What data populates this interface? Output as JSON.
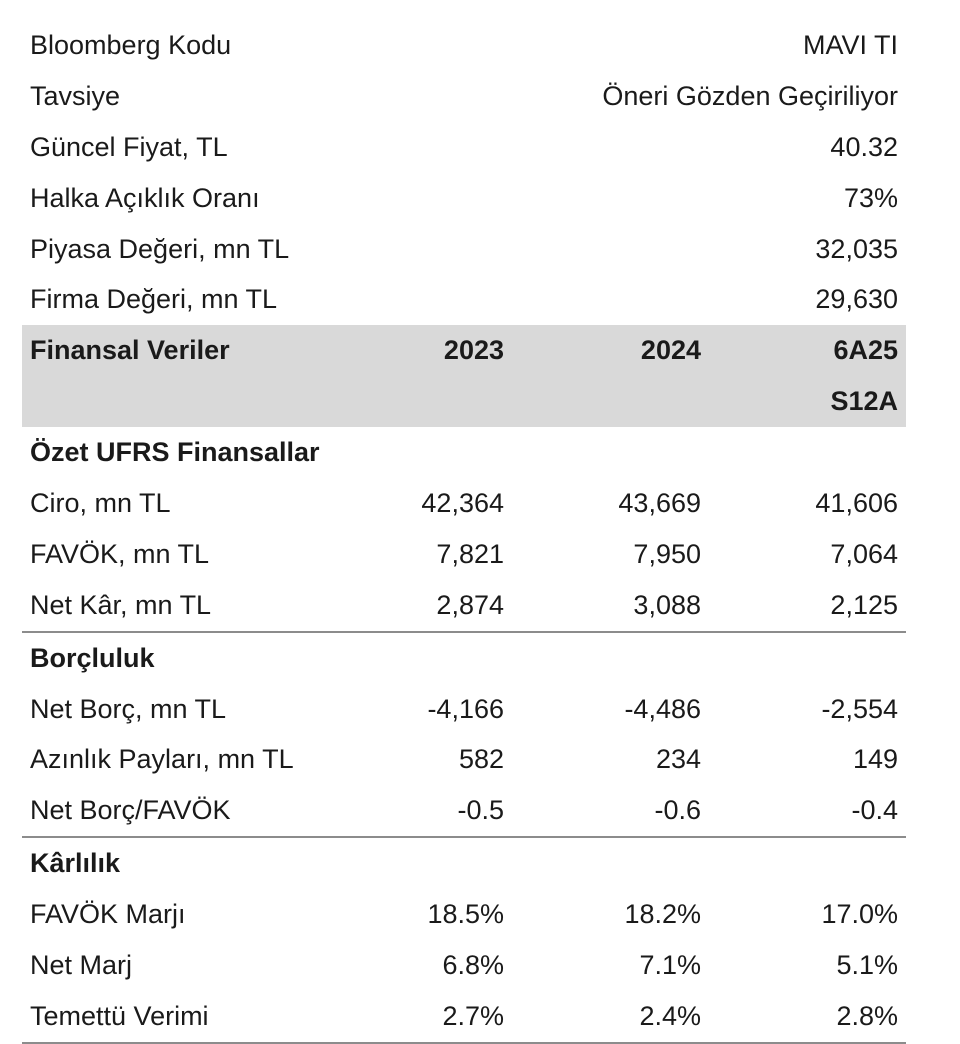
{
  "info": [
    {
      "label": "Bloomberg Kodu",
      "value": "MAVI TI"
    },
    {
      "label": "Tavsiye",
      "value": "Öneri Gözden Geçiriliyor"
    },
    {
      "label": "Güncel Fiyat, TL",
      "value": "40.32"
    },
    {
      "label": "Halka Açıklık Oranı",
      "value": "73%"
    },
    {
      "label": "Piyasa Değeri, mn TL",
      "value": "32,035"
    },
    {
      "label": "Firma Değeri, mn TL",
      "value": "29,630"
    }
  ],
  "header": {
    "label": "Finansal Veriler",
    "col1": "2023",
    "col2": "2024",
    "col3_line1": "6A25",
    "col3_line2": "S12A"
  },
  "sections": [
    {
      "title": "Özet UFRS Finansallar",
      "rows": [
        {
          "label": "Ciro, mn TL",
          "v2023": "42,364",
          "v2024": "43,669",
          "v6a25": "41,606"
        },
        {
          "label": "FAVÖK, mn TL",
          "v2023": "7,821",
          "v2024": "7,950",
          "v6a25": "7,064"
        },
        {
          "label": "Net Kâr, mn TL",
          "v2023": "2,874",
          "v2024": "3,088",
          "v6a25": "2,125"
        }
      ]
    },
    {
      "title": "Borçluluk",
      "rows": [
        {
          "label": "Net Borç, mn TL",
          "v2023": "-4,166",
          "v2024": "-4,486",
          "v6a25": "-2,554"
        },
        {
          "label": "Azınlık Payları, mn TL",
          "v2023": "582",
          "v2024": "234",
          "v6a25": "149"
        },
        {
          "label": "Net Borç/FAVÖK",
          "v2023": "-0.5",
          "v2024": "-0.6",
          "v6a25": "-0.4"
        }
      ]
    },
    {
      "title": "Kârlılık",
      "rows": [
        {
          "label": "FAVÖK Marjı",
          "v2023": "18.5%",
          "v2024": "18.2%",
          "v6a25": "17.0%"
        },
        {
          "label": "Net Marj",
          "v2023": "6.8%",
          "v2024": "7.1%",
          "v6a25": "5.1%"
        },
        {
          "label": "Temettü Verimi",
          "v2023": "2.7%",
          "v2024": "2.4%",
          "v6a25": "2.8%"
        }
      ]
    }
  ]
}
